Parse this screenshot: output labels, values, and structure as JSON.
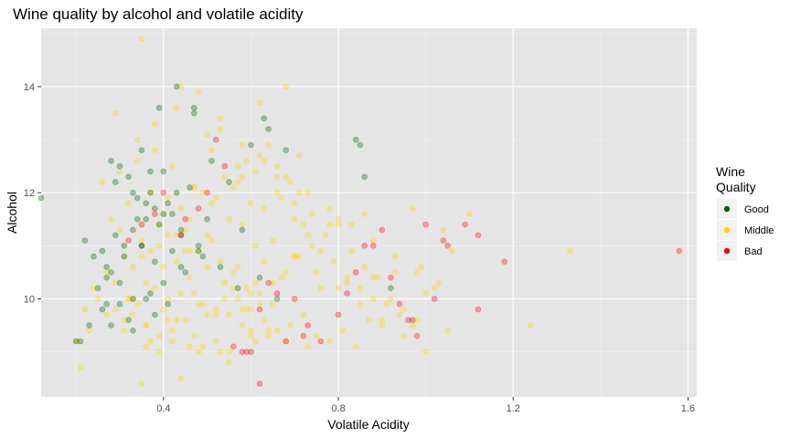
{
  "chart_data": {
    "type": "scatter",
    "title": "Wine quality by alcohol and volatile acidity",
    "xlabel": "Volatile Acidity",
    "ylabel": "Alcohol",
    "xlim": [
      0.12,
      1.62
    ],
    "ylim": [
      8.15,
      15.1
    ],
    "x_ticks": [
      0.4,
      0.8,
      1.2,
      1.6
    ],
    "x_tick_labels": [
      "0.4",
      "0.8",
      "1.2",
      "1.6"
    ],
    "y_ticks": [
      10,
      12,
      14
    ],
    "y_tick_labels": [
      "10",
      "12",
      "14"
    ],
    "grid": true,
    "legend": {
      "title_lines": [
        "Wine",
        "Quality"
      ],
      "placement": "right",
      "entries": [
        {
          "label": "Good",
          "color": "#006400"
        },
        {
          "label": "Middle",
          "color": "#FFD700"
        },
        {
          "label": "Bad",
          "color": "#FF0000"
        }
      ]
    },
    "series": [
      {
        "name": "Middle",
        "color": "#FFD700",
        "x": [
          0.36,
          0.42,
          0.31,
          0.47,
          0.52,
          0.58,
          0.61,
          0.64,
          0.55,
          0.49,
          0.44,
          0.38,
          0.33,
          0.29,
          0.41,
          0.46,
          0.5,
          0.54,
          0.57,
          0.6,
          0.63,
          0.66,
          0.69,
          0.72,
          0.75,
          0.78,
          0.81,
          0.84,
          0.87,
          0.9,
          0.35,
          0.39,
          0.43,
          0.48,
          0.53,
          0.56,
          0.59,
          0.62,
          0.65,
          0.68,
          0.71,
          0.74,
          0.77,
          0.8,
          0.83,
          0.86,
          0.89,
          0.92,
          0.95,
          0.98,
          0.28,
          0.32,
          0.37,
          0.4,
          0.45,
          0.51,
          0.58,
          0.63,
          0.67,
          0.7,
          0.73,
          0.76,
          0.79,
          0.82,
          0.85,
          0.88,
          0.91,
          0.94,
          0.97,
          1.0,
          1.03,
          0.26,
          0.3,
          0.34,
          0.38,
          0.42,
          0.47,
          0.52,
          0.57,
          0.61,
          0.66,
          0.7,
          0.74,
          0.78,
          0.24,
          0.27,
          0.31,
          0.35,
          0.39,
          0.44,
          0.49,
          0.54,
          0.59,
          0.64,
          0.69,
          0.22,
          0.25,
          0.29,
          0.33,
          0.37,
          0.41,
          0.46,
          0.51,
          0.56,
          0.61,
          0.2,
          0.23,
          0.27,
          0.32,
          0.36,
          0.4,
          0.45,
          0.5,
          0.55,
          0.6,
          0.65,
          0.7,
          0.75,
          0.8,
          0.85,
          0.9,
          0.95,
          1.0,
          1.05,
          0.34,
          0.38,
          0.43,
          0.48,
          0.53,
          0.58,
          0.63,
          0.68,
          0.73,
          0.78,
          0.83,
          0.88,
          0.93,
          0.98,
          1.02,
          1.06,
          1.1,
          1.24,
          1.33,
          0.21,
          0.35,
          0.44,
          0.29,
          0.51,
          0.62,
          0.57,
          0.66,
          0.71,
          0.39,
          0.42,
          0.49,
          0.55,
          0.6,
          0.31,
          0.37,
          0.46,
          0.53,
          0.64,
          0.68,
          0.73,
          0.43,
          0.5,
          0.58,
          0.65,
          0.36,
          0.45,
          0.52,
          0.59,
          0.62,
          0.41,
          0.47,
          0.56,
          0.61,
          0.67,
          0.33,
          0.4,
          0.48,
          0.54,
          0.6,
          0.76,
          0.82,
          0.88,
          0.93,
          0.99,
          0.3,
          0.72,
          0.8,
          0.86,
          0.97,
          1.04,
          0.57,
          0.63,
          0.7,
          0.35,
          0.55,
          0.44,
          0.48,
          0.52,
          0.6,
          0.41,
          0.47,
          0.58,
          0.66,
          0.71,
          0.5,
          0.53,
          0.62,
          0.68,
          0.43,
          0.46,
          0.39,
          0.36,
          0.34,
          0.32
        ],
        "y": [
          9.5,
          9.4,
          9.6,
          9.3,
          9.8,
          9.5,
          9.2,
          9.4,
          9.7,
          9.9,
          10.1,
          10.2,
          10.0,
          9.8,
          9.6,
          10.4,
          10.6,
          10.3,
          10.0,
          9.8,
          9.6,
          9.4,
          9.5,
          9.7,
          9.3,
          9.2,
          9.4,
          9.1,
          9.6,
          9.5,
          10.8,
          11.0,
          11.2,
          10.9,
          10.7,
          10.5,
          10.2,
          10.1,
          10.3,
          10.5,
          10.8,
          11.0,
          11.2,
          11.4,
          10.9,
          10.6,
          10.4,
          10.0,
          9.8,
          9.6,
          11.5,
          11.8,
          12.0,
          11.6,
          11.3,
          11.1,
          11.4,
          11.7,
          11.9,
          11.5,
          11.2,
          10.9,
          10.7,
          10.4,
          10.2,
          10.0,
          9.9,
          9.7,
          9.5,
          10.1,
          10.3,
          12.2,
          12.4,
          12.6,
          12.8,
          12.5,
          12.1,
          11.9,
          12.2,
          12.4,
          12.0,
          11.8,
          11.6,
          11.4,
          10.2,
          10.5,
          10.8,
          11.1,
          11.4,
          11.7,
          12.0,
          12.3,
          12.6,
          12.9,
          12.2,
          9.8,
          10.0,
          10.3,
          10.6,
          10.9,
          11.2,
          11.5,
          11.8,
          12.1,
          11.0,
          9.2,
          9.4,
          9.7,
          10.0,
          10.3,
          10.6,
          10.9,
          11.2,
          11.5,
          11.8,
          11.1,
          10.8,
          10.5,
          10.2,
          9.9,
          9.6,
          9.3,
          9.0,
          9.4,
          13.0,
          13.3,
          13.6,
          13.9,
          13.2,
          12.9,
          12.6,
          12.3,
          12.0,
          11.7,
          11.4,
          11.1,
          10.8,
          10.5,
          10.2,
          10.9,
          11.6,
          9.5,
          10.9,
          8.7,
          14.9,
          14.0,
          13.5,
          12.8,
          12.7,
          12.5,
          12.3,
          12.0,
          9.0,
          9.2,
          9.1,
          9.0,
          9.3,
          9.4,
          9.2,
          9.1,
          9.0,
          9.3,
          9.2,
          9.1,
          9.6,
          9.7,
          9.8,
          9.9,
          9.5,
          9.6,
          9.7,
          9.8,
          9.9,
          10.0,
          10.1,
          10.2,
          10.3,
          10.4,
          9.7,
          9.8,
          9.9,
          10.0,
          10.1,
          10.2,
          10.3,
          10.4,
          10.5,
          10.6,
          11.3,
          11.4,
          11.5,
          11.6,
          11.7,
          11.3,
          10.6,
          10.7,
          10.8,
          8.4,
          8.8,
          8.5,
          9.0,
          9.2,
          9.4,
          11.9,
          12.1,
          12.3,
          12.5,
          12.7,
          13.1,
          13.4,
          13.7,
          14.0,
          10.7,
          10.9,
          9.3,
          9.1,
          9.9,
          10.0
        ]
      },
      {
        "name": "Good",
        "color": "#006400",
        "x": [
          0.12,
          0.28,
          0.3,
          0.32,
          0.35,
          0.37,
          0.38,
          0.4,
          0.42,
          0.44,
          0.31,
          0.33,
          0.36,
          0.26,
          0.29,
          0.34,
          0.27,
          0.3,
          0.25,
          0.28,
          0.31,
          0.35,
          0.22,
          0.24,
          0.27,
          0.33,
          0.21,
          0.23,
          0.26,
          0.39,
          0.43,
          0.47,
          0.51,
          0.55,
          0.6,
          0.64,
          0.68,
          0.5,
          0.46,
          0.41,
          0.37,
          0.34,
          0.45,
          0.49,
          0.53,
          0.57,
          0.62,
          0.66,
          0.38,
          0.42,
          0.29,
          0.33,
          0.36,
          0.4,
          0.44,
          0.48,
          0.3,
          0.37,
          0.41,
          0.35,
          0.39,
          0.43,
          0.47,
          0.58,
          0.63,
          0.84,
          0.85,
          0.86,
          0.92,
          0.2,
          0.27,
          0.33,
          0.38,
          0.28,
          0.32,
          0.36,
          0.4,
          0.44,
          0.48
        ],
        "y": [
          11.9,
          12.6,
          12.5,
          12.3,
          12.8,
          12.0,
          11.7,
          12.4,
          11.6,
          11.2,
          11.0,
          11.3,
          11.5,
          10.9,
          11.2,
          11.5,
          10.6,
          10.3,
          10.2,
          10.5,
          10.8,
          11.0,
          11.1,
          10.8,
          10.4,
          10.0,
          9.2,
          9.5,
          9.8,
          13.6,
          14.0,
          13.5,
          12.6,
          12.2,
          12.9,
          13.2,
          12.8,
          11.5,
          12.1,
          11.8,
          12.4,
          11.9,
          10.5,
          10.8,
          10.6,
          10.2,
          10.4,
          10.0,
          10.7,
          10.9,
          12.2,
          12.0,
          11.8,
          11.6,
          11.3,
          11.0,
          9.9,
          10.1,
          9.9,
          11.0,
          11.4,
          12.0,
          13.6,
          11.3,
          13.4,
          13.0,
          12.9,
          12.3,
          10.2,
          9.2,
          9.9,
          9.4,
          9.7,
          9.5,
          9.6,
          10.0,
          10.3,
          10.6,
          10.9
        ]
      },
      {
        "name": "Bad",
        "color": "#FF0000",
        "x": [
          1.58,
          1.18,
          1.12,
          1.02,
          1.0,
          1.04,
          0.86,
          0.84,
          0.88,
          0.92,
          0.96,
          0.98,
          0.6,
          0.62,
          0.64,
          0.66,
          0.58,
          0.56,
          0.52,
          0.54,
          0.5,
          0.48,
          0.45,
          0.44,
          0.4,
          0.35,
          0.32,
          0.38,
          0.7,
          0.73,
          0.76,
          0.8,
          0.82,
          0.9,
          0.94,
          0.97,
          1.05,
          1.09,
          1.12,
          0.68,
          0.72,
          0.62,
          0.59
        ],
        "y": [
          10.9,
          10.7,
          9.8,
          10.0,
          11.4,
          11.1,
          11.0,
          10.5,
          11.0,
          10.4,
          9.6,
          9.3,
          9.0,
          8.4,
          10.3,
          10.1,
          9.0,
          9.1,
          13.0,
          12.5,
          12.0,
          11.7,
          11.5,
          11.2,
          12.0,
          11.4,
          11.1,
          11.6,
          10.0,
          9.5,
          9.2,
          9.7,
          10.1,
          11.3,
          9.9,
          9.6,
          11.0,
          11.4,
          11.2,
          9.2,
          9.3,
          9.8,
          9.0
        ]
      }
    ]
  }
}
